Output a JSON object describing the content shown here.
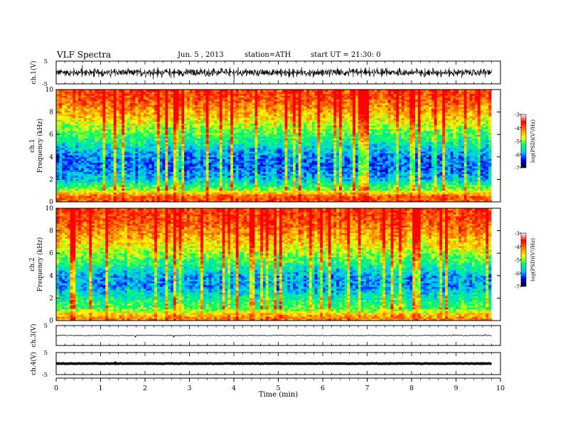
{
  "header": {
    "title": "VLF  Spectra",
    "date": "Jun. 5  , 2013",
    "station": "station=ATH",
    "start": "start  UT  =   21:30: 0"
  },
  "chart_data": [
    {
      "type": "line",
      "panel": "ch1-waveform",
      "ylabel": "ch.1(V)",
      "ylim": [
        -5,
        5
      ],
      "yticks": [
        "5",
        "-5"
      ],
      "xlim": [
        0,
        10
      ],
      "description_level": "dense broadband waveform, amplitude about ±2.5 V"
    },
    {
      "type": "heatmap",
      "panel": "ch1-spectrogram",
      "ylabel": "ch.1\nFrequency  (kHz)",
      "ylabel_lines": [
        "ch.1",
        "Frequency  (kHz)"
      ],
      "ylim": [
        0,
        10
      ],
      "yticks": [
        "0",
        "2",
        "4",
        "6",
        "8",
        "10"
      ],
      "xlim": [
        0,
        9.8
      ],
      "colorbar": {
        "label": "log(PSD)(V²/Hz)",
        "ticks": [
          "-3",
          "-4",
          "-5",
          "-6",
          "-7"
        ],
        "range": [
          -7,
          -3
        ]
      },
      "band_profile": [
        {
          "freq": 0.0,
          "level": -3.4
        },
        {
          "freq": 0.5,
          "level": -3.5
        },
        {
          "freq": 1.0,
          "level": -4.6
        },
        {
          "freq": 2.0,
          "level": -5.6
        },
        {
          "freq": 3.0,
          "level": -6.0
        },
        {
          "freq": 4.0,
          "level": -5.9
        },
        {
          "freq": 5.0,
          "level": -5.4
        },
        {
          "freq": 6.0,
          "level": -4.9
        },
        {
          "freq": 7.0,
          "level": -4.4
        },
        {
          "freq": 8.0,
          "level": -3.9
        },
        {
          "freq": 9.0,
          "level": -3.5
        },
        {
          "freq": 10.0,
          "level": -3.3
        }
      ]
    },
    {
      "type": "heatmap",
      "panel": "ch2-spectrogram",
      "ylabel": "ch.2\nFrequency  (kHz)",
      "ylabel_lines": [
        "ch.2",
        "Frequency  (kHz)"
      ],
      "ylim": [
        0,
        10
      ],
      "yticks": [
        "0",
        "2",
        "4",
        "6",
        "8",
        "10"
      ],
      "xlim": [
        0,
        9.8
      ],
      "colorbar": {
        "label": "log(PSD)(V²/Hz)",
        "ticks": [
          "-3",
          "-4",
          "-5",
          "-6",
          "-7"
        ],
        "range": [
          -7,
          -3
        ]
      },
      "band_profile": [
        {
          "freq": 0.0,
          "level": -3.6
        },
        {
          "freq": 0.5,
          "level": -4.0
        },
        {
          "freq": 1.0,
          "level": -4.8
        },
        {
          "freq": 2.0,
          "level": -5.2
        },
        {
          "freq": 3.0,
          "level": -5.8
        },
        {
          "freq": 4.0,
          "level": -5.7
        },
        {
          "freq": 5.0,
          "level": -5.1
        },
        {
          "freq": 6.0,
          "level": -4.6
        },
        {
          "freq": 7.0,
          "level": -4.1
        },
        {
          "freq": 8.0,
          "level": -3.7
        },
        {
          "freq": 9.0,
          "level": -3.4
        },
        {
          "freq": 10.0,
          "level": -3.3
        }
      ]
    },
    {
      "type": "line",
      "panel": "ch3-waveform",
      "ylabel": "ch.3(V)",
      "ylim": [
        -5,
        5
      ],
      "yticks": [
        "5"
      ],
      "xlim": [
        0,
        10
      ],
      "baseline": 0
    },
    {
      "type": "line",
      "panel": "ch4-waveform",
      "ylabel": "ch.4(V)",
      "ylim": [
        -5,
        5
      ],
      "yticks": [
        "5",
        "-5"
      ],
      "xlim": [
        0,
        10
      ],
      "baseline": 0,
      "xlabel": "Time  (min)",
      "xticks": [
        "0",
        "1",
        "2",
        "3",
        "4",
        "5",
        "6",
        "7",
        "8",
        "9",
        "10"
      ]
    }
  ],
  "colors": {
    "map": [
      "#000000",
      "#0000ff",
      "#00c8ff",
      "#00ff60",
      "#ffff00",
      "#ff8000",
      "#ff0000",
      "#ffffff"
    ],
    "axis": "#000000",
    "trace": "#000000"
  }
}
